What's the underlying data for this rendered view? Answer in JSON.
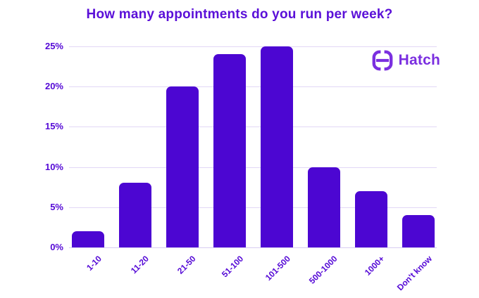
{
  "title": "How many appointments do you run per week?",
  "logo": {
    "text": "Hatch",
    "icon": "hatch-h-icon"
  },
  "colors": {
    "bar": "#4C06D2",
    "title": "#5A0FD8",
    "tick_label": "#5408D6",
    "gridline": "#E2D7F6",
    "axis_line": "#D8CCF2",
    "logo": "#7B2FE0",
    "background": "#FFFFFF"
  },
  "chart_data": {
    "type": "bar",
    "title": "How many appointments do you run per week?",
    "categories": [
      "1-10",
      "11-20",
      "21-50",
      "51-100",
      "101-500",
      "500-1000",
      "1000+",
      "Don't know"
    ],
    "values": [
      2,
      8,
      20,
      24,
      25,
      10,
      7,
      4
    ],
    "unit": "%",
    "xlabel": "",
    "ylabel": "",
    "ylim": [
      0,
      25
    ],
    "ytick_step": 5,
    "yticks": [
      "0%",
      "5%",
      "10%",
      "15%",
      "20%",
      "25%"
    ],
    "grid": "horizontal",
    "legend": "none",
    "bar_corner_radius": "rounded-top"
  }
}
